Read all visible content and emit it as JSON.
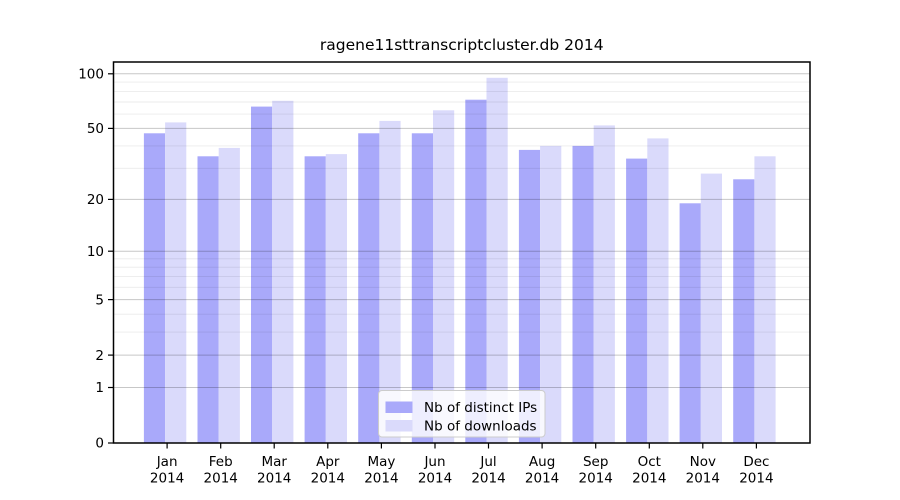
{
  "title": "ragene11sttranscriptcluster.db 2014",
  "chart_data": {
    "type": "bar",
    "title": "ragene11sttranscriptcluster.db 2014",
    "categories": [
      "Jan",
      "Feb",
      "Mar",
      "Apr",
      "May",
      "Jun",
      "Jul",
      "Aug",
      "Sep",
      "Oct",
      "Nov",
      "Dec"
    ],
    "x_tick_second_line": "2014",
    "series": [
      {
        "name": "Nb of distinct IPs",
        "color": "#a9a9fa",
        "values": [
          47,
          35,
          66,
          35,
          47,
          47,
          72,
          38,
          40,
          34,
          19,
          26
        ]
      },
      {
        "name": "Nb of downloads",
        "color": "#dadafb",
        "values": [
          54,
          39,
          71,
          36,
          55,
          63,
          95,
          40,
          52,
          44,
          28,
          35
        ]
      }
    ],
    "yscale": "log1p",
    "ylim": [
      0,
      116
    ],
    "yticks": [
      0,
      1,
      2,
      5,
      10,
      20,
      50,
      100
    ],
    "yticks_minor": [
      3,
      4,
      6,
      7,
      8,
      9,
      30,
      40,
      60,
      70,
      80,
      90
    ],
    "grid": true,
    "legend_position": "lower-center",
    "frame_color": "#000000",
    "gridline_major_color": "rgba(0,0,0,0.22)",
    "gridline_minor_color": "rgba(0,0,0,0.08)"
  }
}
